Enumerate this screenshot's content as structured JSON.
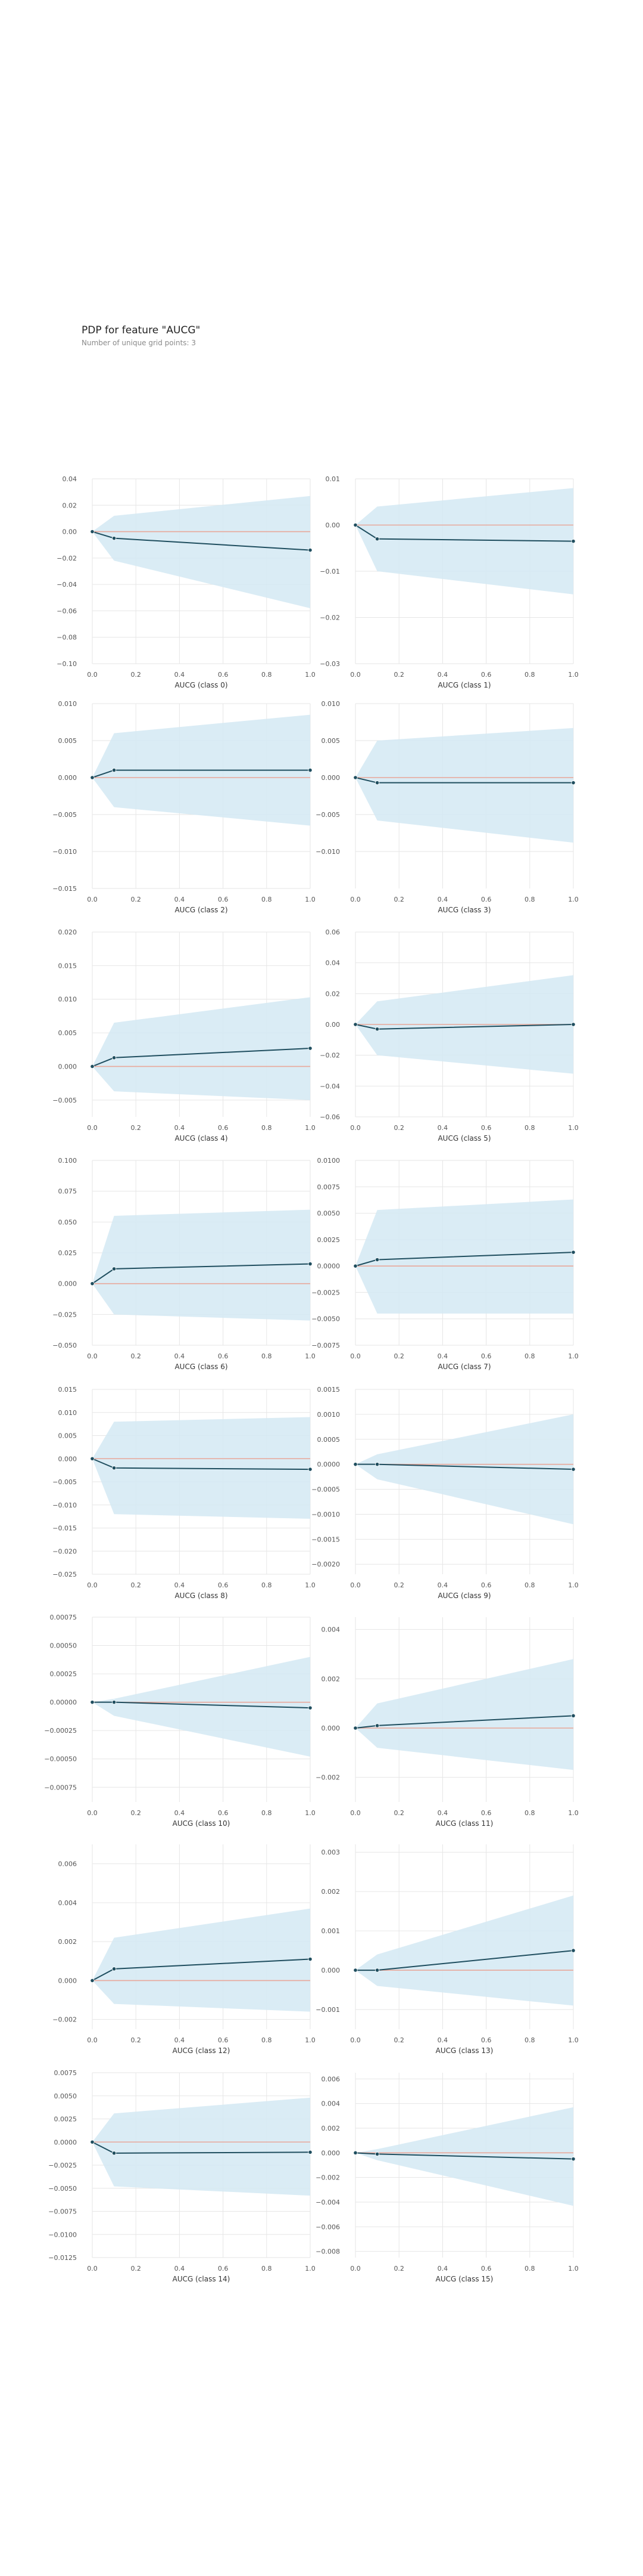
{
  "title": "PDP for feature \"AUCG\"",
  "subtitle": "Number of unique grid points: 3",
  "colors": {
    "band": "#d3e9f3",
    "line": "#1f4e5f",
    "ref": "#e8a79a",
    "grid": "#e6e6e6"
  },
  "chart_data": [
    {
      "type": "line",
      "xlabel": "AUCG (class 0)",
      "x": [
        0.0,
        0.1,
        1.0
      ],
      "values": [
        0.0,
        -0.005,
        -0.014
      ],
      "upper": [
        0.0,
        0.012,
        0.027
      ],
      "lower": [
        0.0,
        -0.022,
        -0.058
      ],
      "ylim": [
        -0.1,
        0.04
      ],
      "yticks": [
        0.04,
        0.02,
        0.0,
        -0.02,
        -0.04,
        -0.06,
        -0.08,
        -0.1
      ],
      "ytick_labels": [
        "0.04",
        "0.02",
        "0.00",
        "−0.02",
        "−0.04",
        "−0.06",
        "−0.08",
        "−0.10"
      ],
      "xticks": [
        0.0,
        0.2,
        0.4,
        0.6,
        0.8,
        1.0
      ],
      "xtick_labels": [
        "0.0",
        "0.2",
        "0.4",
        "0.6",
        "0.8",
        "1.0"
      ]
    },
    {
      "type": "line",
      "xlabel": "AUCG (class 1)",
      "x": [
        0.0,
        0.1,
        1.0
      ],
      "values": [
        0.0,
        -0.003,
        -0.0035
      ],
      "upper": [
        0.0,
        0.004,
        0.008
      ],
      "lower": [
        0.0,
        -0.01,
        -0.015
      ],
      "ylim": [
        -0.03,
        0.01
      ],
      "yticks": [
        0.01,
        0.0,
        -0.01,
        -0.02,
        -0.03
      ],
      "ytick_labels": [
        "0.01",
        "0.00",
        "−0.01",
        "−0.02",
        "−0.03"
      ],
      "xticks": [
        0.0,
        0.2,
        0.4,
        0.6,
        0.8,
        1.0
      ],
      "xtick_labels": [
        "0.0",
        "0.2",
        "0.4",
        "0.6",
        "0.8",
        "1.0"
      ]
    },
    {
      "type": "line",
      "xlabel": "AUCG (class 2)",
      "x": [
        0.0,
        0.1,
        1.0
      ],
      "values": [
        0.0,
        0.001,
        0.001
      ],
      "upper": [
        0.0,
        0.006,
        0.0085
      ],
      "lower": [
        0.0,
        -0.004,
        -0.0065
      ],
      "ylim": [
        -0.015,
        0.01
      ],
      "yticks": [
        0.01,
        0.005,
        0.0,
        -0.005,
        -0.01,
        -0.015
      ],
      "ytick_labels": [
        "0.010",
        "0.005",
        "0.000",
        "−0.005",
        "−0.010",
        "−0.015"
      ],
      "xticks": [
        0.0,
        0.2,
        0.4,
        0.6,
        0.8,
        1.0
      ],
      "xtick_labels": [
        "0.0",
        "0.2",
        "0.4",
        "0.6",
        "0.8",
        "1.0"
      ]
    },
    {
      "type": "line",
      "xlabel": "AUCG (class 3)",
      "x": [
        0.0,
        0.1,
        1.0
      ],
      "values": [
        0.0,
        -0.0007,
        -0.0007
      ],
      "upper": [
        0.0,
        0.005,
        0.0067
      ],
      "lower": [
        0.0,
        -0.0058,
        -0.0088
      ],
      "ylim": [
        -0.015,
        0.01
      ],
      "yticks": [
        0.01,
        0.005,
        0.0,
        -0.005,
        -0.01
      ],
      "ytick_labels": [
        "0.010",
        "0.005",
        "0.000",
        "−0.005",
        "−0.010"
      ],
      "xticks": [
        0.0,
        0.2,
        0.4,
        0.6,
        0.8,
        1.0
      ],
      "xtick_labels": [
        "0.0",
        "0.2",
        "0.4",
        "0.6",
        "0.8",
        "1.0"
      ]
    },
    {
      "type": "line",
      "xlabel": "AUCG (class 4)",
      "x": [
        0.0,
        0.1,
        1.0
      ],
      "values": [
        0.0,
        0.0013,
        0.0027
      ],
      "upper": [
        0.0,
        0.0065,
        0.0103
      ],
      "lower": [
        0.0,
        -0.0037,
        -0.005
      ],
      "ylim": [
        -0.0075,
        0.02
      ],
      "yticks": [
        0.02,
        0.015,
        0.01,
        0.005,
        0.0,
        -0.005
      ],
      "ytick_labels": [
        "0.020",
        "0.015",
        "0.010",
        "0.005",
        "0.000",
        "−0.005"
      ],
      "xticks": [
        0.0,
        0.2,
        0.4,
        0.6,
        0.8,
        1.0
      ],
      "xtick_labels": [
        "0.0",
        "0.2",
        "0.4",
        "0.6",
        "0.8",
        "1.0"
      ]
    },
    {
      "type": "line",
      "xlabel": "AUCG (class 5)",
      "x": [
        0.0,
        0.1,
        1.0
      ],
      "values": [
        0.0,
        -0.003,
        0.0
      ],
      "upper": [
        0.0,
        0.015,
        0.032
      ],
      "lower": [
        0.0,
        -0.02,
        -0.032
      ],
      "ylim": [
        -0.06,
        0.06
      ],
      "yticks": [
        0.06,
        0.04,
        0.02,
        0.0,
        -0.02,
        -0.04,
        -0.06
      ],
      "ytick_labels": [
        "0.06",
        "0.04",
        "0.02",
        "0.00",
        "−0.02",
        "−0.04",
        "−0.06"
      ],
      "xticks": [
        0.0,
        0.2,
        0.4,
        0.6,
        0.8,
        1.0
      ],
      "xtick_labels": [
        "0.0",
        "0.2",
        "0.4",
        "0.6",
        "0.8",
        "1.0"
      ]
    },
    {
      "type": "line",
      "xlabel": "AUCG (class 6)",
      "x": [
        0.0,
        0.1,
        1.0
      ],
      "values": [
        0.0,
        0.012,
        0.016
      ],
      "upper": [
        0.0,
        0.055,
        0.06
      ],
      "lower": [
        0.0,
        -0.025,
        -0.03
      ],
      "ylim": [
        -0.05,
        0.1
      ],
      "yticks": [
        0.1,
        0.075,
        0.05,
        0.025,
        0.0,
        -0.025,
        -0.05
      ],
      "ytick_labels": [
        "0.100",
        "0.075",
        "0.050",
        "0.025",
        "0.000",
        "−0.025",
        "−0.050"
      ],
      "xticks": [
        0.0,
        0.2,
        0.4,
        0.6,
        0.8,
        1.0
      ],
      "xtick_labels": [
        "0.0",
        "0.2",
        "0.4",
        "0.6",
        "0.8",
        "1.0"
      ]
    },
    {
      "type": "line",
      "xlabel": "AUCG (class 7)",
      "x": [
        0.0,
        0.1,
        1.0
      ],
      "values": [
        0.0,
        0.0006,
        0.0013
      ],
      "upper": [
        0.0,
        0.0053,
        0.0063
      ],
      "lower": [
        0.0,
        -0.0045,
        -0.0045
      ],
      "ylim": [
        -0.0075,
        0.01
      ],
      "yticks": [
        0.01,
        0.0075,
        0.005,
        0.0025,
        0.0,
        -0.0025,
        -0.005,
        -0.0075
      ],
      "ytick_labels": [
        "0.0100",
        "0.0075",
        "0.0050",
        "0.0025",
        "0.0000",
        "−0.0025",
        "−0.0050",
        "−0.0075"
      ],
      "xticks": [
        0.0,
        0.2,
        0.4,
        0.6,
        0.8,
        1.0
      ],
      "xtick_labels": [
        "0.0",
        "0.2",
        "0.4",
        "0.6",
        "0.8",
        "1.0"
      ]
    },
    {
      "type": "line",
      "xlabel": "AUCG (class 8)",
      "x": [
        0.0,
        0.1,
        1.0
      ],
      "values": [
        0.0,
        -0.002,
        -0.0023
      ],
      "upper": [
        0.0,
        0.008,
        0.009
      ],
      "lower": [
        0.0,
        -0.012,
        -0.013
      ],
      "ylim": [
        -0.025,
        0.015
      ],
      "yticks": [
        0.015,
        0.01,
        0.005,
        0.0,
        -0.005,
        -0.01,
        -0.015,
        -0.02,
        -0.025
      ],
      "ytick_labels": [
        "0.015",
        "0.010",
        "0.005",
        "0.000",
        "−0.005",
        "−0.010",
        "−0.015",
        "−0.020",
        "−0.025"
      ],
      "xticks": [
        0.0,
        0.2,
        0.4,
        0.6,
        0.8,
        1.0
      ],
      "xtick_labels": [
        "0.0",
        "0.2",
        "0.4",
        "0.6",
        "0.8",
        "1.0"
      ]
    },
    {
      "type": "line",
      "xlabel": "AUCG (class 9)",
      "x": [
        0.0,
        0.1,
        1.0
      ],
      "values": [
        0.0,
        0.0,
        -0.0001
      ],
      "upper": [
        0.0,
        0.0002,
        0.001
      ],
      "lower": [
        0.0,
        -0.0003,
        -0.0012
      ],
      "ylim": [
        -0.0022,
        0.0015
      ],
      "yticks": [
        0.0015,
        0.001,
        0.0005,
        0.0,
        -0.0005,
        -0.001,
        -0.0015,
        -0.002
      ],
      "ytick_labels": [
        "0.0015",
        "0.0010",
        "0.0005",
        "0.0000",
        "−0.0005",
        "−0.0010",
        "−0.0015",
        "−0.0020"
      ],
      "xticks": [
        0.0,
        0.2,
        0.4,
        0.6,
        0.8,
        1.0
      ],
      "xtick_labels": [
        "0.0",
        "0.2",
        "0.4",
        "0.6",
        "0.8",
        "1.0"
      ]
    },
    {
      "type": "line",
      "xlabel": "AUCG (class 10)",
      "x": [
        0.0,
        0.1,
        1.0
      ],
      "values": [
        0.0,
        0.0,
        -5e-05
      ],
      "upper": [
        0.0,
        3e-05,
        0.0004
      ],
      "lower": [
        0.0,
        -0.00012,
        -0.00048
      ],
      "ylim": [
        -0.00088,
        0.00075
      ],
      "yticks": [
        0.00075,
        0.0005,
        0.00025,
        0.0,
        -0.00025,
        -0.0005,
        -0.00075
      ],
      "ytick_labels": [
        "0.00075",
        "0.00050",
        "0.00025",
        "0.00000",
        "−0.00025",
        "−0.00050",
        "−0.00075"
      ],
      "xticks": [
        0.0,
        0.2,
        0.4,
        0.6,
        0.8,
        1.0
      ],
      "xtick_labels": [
        "0.0",
        "0.2",
        "0.4",
        "0.6",
        "0.8",
        "1.0"
      ]
    },
    {
      "type": "line",
      "xlabel": "AUCG (class 11)",
      "x": [
        0.0,
        0.1,
        1.0
      ],
      "values": [
        0.0,
        0.0001,
        0.0005
      ],
      "upper": [
        0.0,
        0.001,
        0.0028
      ],
      "lower": [
        0.0,
        -0.0008,
        -0.0017
      ],
      "ylim": [
        -0.003,
        0.0045
      ],
      "yticks": [
        0.004,
        0.002,
        0.0,
        -0.002
      ],
      "ytick_labels": [
        "0.004",
        "0.002",
        "0.000",
        "−0.002"
      ],
      "xticks": [
        0.0,
        0.2,
        0.4,
        0.6,
        0.8,
        1.0
      ],
      "xtick_labels": [
        "0.0",
        "0.2",
        "0.4",
        "0.6",
        "0.8",
        "1.0"
      ]
    },
    {
      "type": "line",
      "xlabel": "AUCG (class 12)",
      "x": [
        0.0,
        0.1,
        1.0
      ],
      "values": [
        0.0,
        0.0006,
        0.0011
      ],
      "upper": [
        0.0,
        0.0022,
        0.0037
      ],
      "lower": [
        0.0,
        -0.0012,
        -0.0016
      ],
      "ylim": [
        -0.0025,
        0.007
      ],
      "yticks": [
        0.006,
        0.004,
        0.002,
        0.0,
        -0.002
      ],
      "ytick_labels": [
        "0.006",
        "0.004",
        "0.002",
        "0.000",
        "−0.002"
      ],
      "xticks": [
        0.0,
        0.2,
        0.4,
        0.6,
        0.8,
        1.0
      ],
      "xtick_labels": [
        "0.0",
        "0.2",
        "0.4",
        "0.6",
        "0.8",
        "1.0"
      ]
    },
    {
      "type": "line",
      "xlabel": "AUCG (class 13)",
      "x": [
        0.0,
        0.1,
        1.0
      ],
      "values": [
        0.0,
        0.0,
        0.0005
      ],
      "upper": [
        0.0,
        0.0004,
        0.0019
      ],
      "lower": [
        0.0,
        -0.0004,
        -0.0009
      ],
      "ylim": [
        -0.0015,
        0.0032
      ],
      "yticks": [
        0.003,
        0.002,
        0.001,
        0.0,
        -0.001
      ],
      "ytick_labels": [
        "0.003",
        "0.002",
        "0.001",
        "0.000",
        "−0.001"
      ],
      "xticks": [
        0.0,
        0.2,
        0.4,
        0.6,
        0.8,
        1.0
      ],
      "xtick_labels": [
        "0.0",
        "0.2",
        "0.4",
        "0.6",
        "0.8",
        "1.0"
      ]
    },
    {
      "type": "line",
      "xlabel": "AUCG (class 14)",
      "x": [
        0.0,
        0.1,
        1.0
      ],
      "values": [
        0.0,
        -0.0012,
        -0.0011
      ],
      "upper": [
        0.0,
        0.0031,
        0.0048
      ],
      "lower": [
        0.0,
        -0.0048,
        -0.0058
      ],
      "ylim": [
        -0.0125,
        0.0075
      ],
      "yticks": [
        0.0075,
        0.005,
        0.0025,
        0.0,
        -0.0025,
        -0.005,
        -0.0075,
        -0.01,
        -0.0125
      ],
      "ytick_labels": [
        "0.0075",
        "0.0050",
        "0.0025",
        "0.0000",
        "−0.0025",
        "−0.0050",
        "−0.0075",
        "−0.0100",
        "−0.0125"
      ],
      "xticks": [
        0.0,
        0.2,
        0.4,
        0.6,
        0.8,
        1.0
      ],
      "xtick_labels": [
        "0.0",
        "0.2",
        "0.4",
        "0.6",
        "0.8",
        "1.0"
      ]
    },
    {
      "type": "line",
      "xlabel": "AUCG (class 15)",
      "x": [
        0.0,
        0.1,
        1.0
      ],
      "values": [
        0.0,
        -0.0001,
        -0.0005
      ],
      "upper": [
        0.0,
        0.0003,
        0.0037
      ],
      "lower": [
        0.0,
        -0.0006,
        -0.0043
      ],
      "ylim": [
        -0.0085,
        0.0065
      ],
      "yticks": [
        0.006,
        0.004,
        0.002,
        0.0,
        -0.002,
        -0.004,
        -0.006,
        -0.008
      ],
      "ytick_labels": [
        "0.006",
        "0.004",
        "0.002",
        "0.000",
        "−0.002",
        "−0.004",
        "−0.006",
        "−0.008"
      ],
      "xticks": [
        0.0,
        0.2,
        0.4,
        0.6,
        0.8,
        1.0
      ],
      "xtick_labels": [
        "0.0",
        "0.2",
        "0.4",
        "0.6",
        "0.8",
        "1.0"
      ]
    }
  ]
}
